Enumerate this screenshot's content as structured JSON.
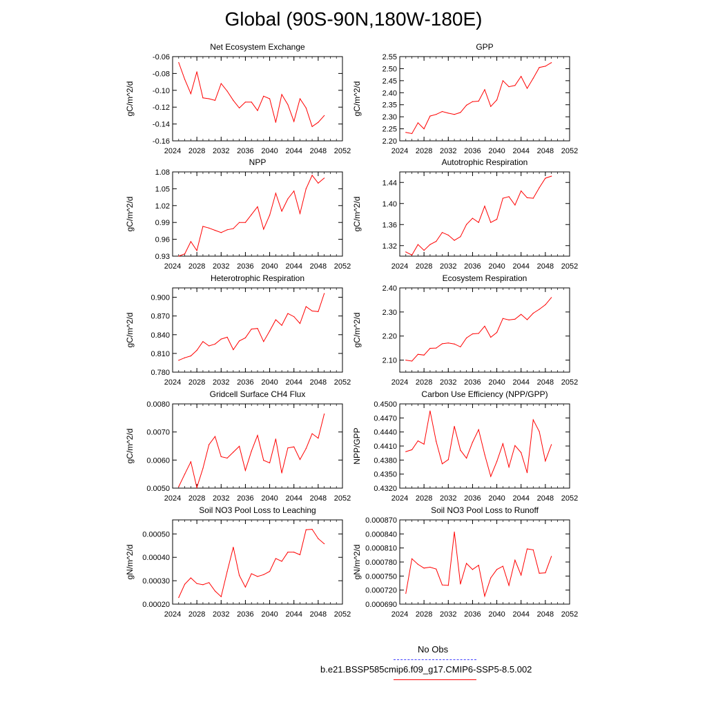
{
  "page": {
    "title": "Global (90S-90N,180W-180E)"
  },
  "legend": {
    "obs_label": "No Obs",
    "obs_color": "#4040ff",
    "run_label": "b.e21.BSSP585cmip6.f09_g17.CMIP6-SSP5-8.5.002",
    "run_color": "#ff0000"
  },
  "chart_data": [
    {
      "type": "line",
      "title": "Net Ecosystem Exchange",
      "ylabel": "gC/m^2/d",
      "xlim": [
        2024,
        2052
      ],
      "ylim": [
        -0.16,
        -0.06
      ],
      "yticks": [
        "-0.06",
        "-0.08",
        "-0.10",
        "-0.12",
        "-0.14",
        "-0.16"
      ],
      "xticks": [
        "2024",
        "2028",
        "2032",
        "2036",
        "2040",
        "2044",
        "2048",
        "2052"
      ],
      "x": [
        2025,
        2026,
        2027,
        2028,
        2029,
        2030,
        2031,
        2032,
        2033,
        2034,
        2035,
        2036,
        2037,
        2038,
        2039,
        2040,
        2041,
        2042,
        2043,
        2044,
        2045,
        2046,
        2047,
        2048,
        2049
      ],
      "series": [
        {
          "values": [
            -0.067,
            -0.087,
            -0.104,
            -0.078,
            -0.109,
            -0.11,
            -0.112,
            -0.092,
            -0.101,
            -0.112,
            -0.121,
            -0.114,
            -0.114,
            -0.124,
            -0.107,
            -0.11,
            -0.138,
            -0.105,
            -0.117,
            -0.137,
            -0.11,
            -0.121,
            -0.143,
            -0.138,
            -0.13
          ],
          "color": "#ff0000"
        }
      ]
    },
    {
      "type": "line",
      "title": "GPP",
      "ylabel": "gC/m^2/d",
      "xlim": [
        2024,
        2052
      ],
      "ylim": [
        2.2,
        2.55
      ],
      "yticks": [
        "2.55",
        "2.50",
        "2.45",
        "2.40",
        "2.35",
        "2.30",
        "2.25",
        "2.20"
      ],
      "xticks": [
        "2024",
        "2028",
        "2032",
        "2036",
        "2040",
        "2044",
        "2048",
        "2052"
      ],
      "x": [
        2025,
        2026,
        2027,
        2028,
        2029,
        2030,
        2031,
        2032,
        2033,
        2034,
        2035,
        2036,
        2037,
        2038,
        2039,
        2040,
        2041,
        2042,
        2043,
        2044,
        2045,
        2046,
        2047,
        2048,
        2049
      ],
      "series": [
        {
          "values": [
            2.235,
            2.23,
            2.275,
            2.25,
            2.303,
            2.31,
            2.322,
            2.315,
            2.31,
            2.318,
            2.348,
            2.363,
            2.365,
            2.413,
            2.343,
            2.37,
            2.45,
            2.425,
            2.43,
            2.468,
            2.418,
            2.46,
            2.505,
            2.51,
            2.525
          ],
          "color": "#ff0000"
        }
      ]
    },
    {
      "type": "line",
      "title": "NPP",
      "ylabel": "gC/m^2/d",
      "xlim": [
        2024,
        2052
      ],
      "ylim": [
        0.93,
        1.08
      ],
      "yticks": [
        "1.08",
        "1.05",
        "1.02",
        "0.99",
        "0.96",
        "0.93"
      ],
      "xticks": [
        "2024",
        "2028",
        "2032",
        "2036",
        "2040",
        "2044",
        "2048",
        "2052"
      ],
      "x": [
        2025,
        2026,
        2027,
        2028,
        2029,
        2030,
        2031,
        2032,
        2033,
        2034,
        2035,
        2036,
        2037,
        2038,
        2039,
        2040,
        2041,
        2042,
        2043,
        2044,
        2045,
        2046,
        2047,
        2048,
        2049
      ],
      "series": [
        {
          "values": [
            0.93,
            0.934,
            0.956,
            0.94,
            0.983,
            0.98,
            0.976,
            0.972,
            0.977,
            0.979,
            0.99,
            0.99,
            1.004,
            1.018,
            0.978,
            1.003,
            1.042,
            1.01,
            1.032,
            1.046,
            1.006,
            1.05,
            1.074,
            1.06,
            1.069
          ],
          "color": "#ff0000"
        }
      ]
    },
    {
      "type": "line",
      "title": "Autotrophic Respiration",
      "ylabel": "gC/m^2/d",
      "xlim": [
        2024,
        2052
      ],
      "ylim": [
        1.3,
        1.46
      ],
      "yticks": [
        "1.44",
        "1.40",
        "1.36",
        "1.32"
      ],
      "xticks": [
        "2024",
        "2028",
        "2032",
        "2036",
        "2040",
        "2044",
        "2048",
        "2052"
      ],
      "x": [
        2025,
        2026,
        2027,
        2028,
        2029,
        2030,
        2031,
        2032,
        2033,
        2034,
        2035,
        2036,
        2037,
        2038,
        2039,
        2040,
        2041,
        2042,
        2043,
        2044,
        2045,
        2046,
        2047,
        2048,
        2049
      ],
      "series": [
        {
          "values": [
            1.308,
            1.302,
            1.322,
            1.311,
            1.322,
            1.328,
            1.345,
            1.34,
            1.33,
            1.337,
            1.36,
            1.372,
            1.364,
            1.395,
            1.364,
            1.37,
            1.41,
            1.413,
            1.397,
            1.424,
            1.411,
            1.41,
            1.43,
            1.448,
            1.452
          ],
          "color": "#ff0000"
        }
      ]
    },
    {
      "type": "line",
      "title": "Heterotrophic Respiration",
      "ylabel": "gC/m^2/d",
      "xlim": [
        2024,
        2052
      ],
      "ylim": [
        0.78,
        0.915
      ],
      "yticks": [
        "0.900",
        "0.870",
        "0.840",
        "0.810",
        "0.780"
      ],
      "xticks": [
        "2024",
        "2028",
        "2032",
        "2036",
        "2040",
        "2044",
        "2048",
        "2052"
      ],
      "x": [
        2025,
        2026,
        2027,
        2028,
        2029,
        2030,
        2031,
        2032,
        2033,
        2034,
        2035,
        2036,
        2037,
        2038,
        2039,
        2040,
        2041,
        2042,
        2043,
        2044,
        2045,
        2046,
        2047,
        2048,
        2049
      ],
      "series": [
        {
          "values": [
            0.799,
            0.803,
            0.806,
            0.815,
            0.829,
            0.822,
            0.825,
            0.833,
            0.836,
            0.816,
            0.83,
            0.835,
            0.849,
            0.85,
            0.829,
            0.846,
            0.864,
            0.855,
            0.874,
            0.869,
            0.858,
            0.885,
            0.878,
            0.877,
            0.906
          ],
          "color": "#ff0000"
        }
      ]
    },
    {
      "type": "line",
      "title": "Ecosystem Respiration",
      "ylabel": "gC/m^2/d",
      "xlim": [
        2024,
        2052
      ],
      "ylim": [
        2.05,
        2.4
      ],
      "yticks": [
        "2.40",
        "2.30",
        "2.20",
        "2.10"
      ],
      "xticks": [
        "2024",
        "2028",
        "2032",
        "2036",
        "2040",
        "2044",
        "2048",
        "2052"
      ],
      "x": [
        2025,
        2026,
        2027,
        2028,
        2029,
        2030,
        2031,
        2032,
        2033,
        2034,
        2035,
        2036,
        2037,
        2038,
        2039,
        2040,
        2041,
        2042,
        2043,
        2044,
        2045,
        2046,
        2047,
        2048,
        2049
      ],
      "series": [
        {
          "values": [
            2.1,
            2.096,
            2.124,
            2.121,
            2.149,
            2.15,
            2.168,
            2.171,
            2.167,
            2.155,
            2.192,
            2.209,
            2.211,
            2.241,
            2.195,
            2.215,
            2.273,
            2.267,
            2.27,
            2.29,
            2.268,
            2.295,
            2.311,
            2.33,
            2.36
          ],
          "color": "#ff0000"
        }
      ]
    },
    {
      "type": "line",
      "title": "Gridcell Surface CH4 Flux",
      "ylabel": "gC/m^2/d",
      "xlim": [
        2024,
        2052
      ],
      "ylim": [
        0.005,
        0.008
      ],
      "yticks": [
        "0.0080",
        "0.0070",
        "0.0060",
        "0.0050"
      ],
      "xticks": [
        "2024",
        "2028",
        "2032",
        "2036",
        "2040",
        "2044",
        "2048",
        "2052"
      ],
      "x": [
        2025,
        2026,
        2027,
        2028,
        2029,
        2030,
        2031,
        2032,
        2033,
        2034,
        2035,
        2036,
        2037,
        2038,
        2039,
        2040,
        2041,
        2042,
        2043,
        2044,
        2045,
        2046,
        2047,
        2048,
        2049
      ],
      "series": [
        {
          "values": [
            0.00505,
            0.0055,
            0.00594,
            0.00502,
            0.0057,
            0.00655,
            0.00684,
            0.00612,
            0.00607,
            0.00628,
            0.00649,
            0.00563,
            0.00632,
            0.00688,
            0.00599,
            0.0059,
            0.00675,
            0.00554,
            0.00643,
            0.00647,
            0.00602,
            0.00641,
            0.00694,
            0.00678,
            0.00764
          ],
          "color": "#ff0000"
        }
      ]
    },
    {
      "type": "line",
      "title": "Carbon Use Efficiency (NPP/GPP)",
      "ylabel": "NPP/GPP",
      "xlim": [
        2024,
        2052
      ],
      "ylim": [
        0.432,
        0.45
      ],
      "yticks": [
        "0.4500",
        "0.4470",
        "0.4440",
        "0.4410",
        "0.4380",
        "0.4350",
        "0.4320"
      ],
      "xticks": [
        "2024",
        "2028",
        "2032",
        "2036",
        "2040",
        "2044",
        "2048",
        "2052"
      ],
      "x": [
        2025,
        2026,
        2027,
        2028,
        2029,
        2030,
        2031,
        2032,
        2033,
        2034,
        2035,
        2036,
        2037,
        2038,
        2039,
        2040,
        2041,
        2042,
        2043,
        2044,
        2045,
        2046,
        2047,
        2048,
        2049
      ],
      "series": [
        {
          "values": [
            0.4398,
            0.4402,
            0.4421,
            0.4414,
            0.4485,
            0.442,
            0.4372,
            0.4381,
            0.4452,
            0.4401,
            0.4384,
            0.4418,
            0.4445,
            0.4392,
            0.4345,
            0.4377,
            0.4415,
            0.4365,
            0.4411,
            0.4396,
            0.4353,
            0.4466,
            0.4441,
            0.4378,
            0.4413
          ],
          "color": "#ff0000"
        }
      ]
    },
    {
      "type": "line",
      "title": "Soil NO3 Pool Loss to Leaching",
      "ylabel": "gN/m^2/d",
      "xlim": [
        2024,
        2052
      ],
      "ylim": [
        0.0002,
        0.00056
      ],
      "yticks": [
        "0.00050",
        "0.00040",
        "0.00030",
        "0.00020"
      ],
      "xticks": [
        "2024",
        "2028",
        "2032",
        "2036",
        "2040",
        "2044",
        "2048",
        "2052"
      ],
      "x": [
        2025,
        2026,
        2027,
        2028,
        2029,
        2030,
        2031,
        2032,
        2033,
        2034,
        2035,
        2036,
        2037,
        2038,
        2039,
        2040,
        2041,
        2042,
        2043,
        2044,
        2045,
        2046,
        2047,
        2048,
        2049
      ],
      "series": [
        {
          "values": [
            0.000228,
            0.000285,
            0.000312,
            0.000288,
            0.000283,
            0.000292,
            0.000256,
            0.000232,
            0.00034,
            0.000443,
            0.000323,
            0.000273,
            0.00033,
            0.000318,
            0.000326,
            0.00034,
            0.000395,
            0.000383,
            0.000422,
            0.000422,
            0.000411,
            0.000518,
            0.00052,
            0.00048,
            0.000458
          ],
          "color": "#ff0000"
        }
      ]
    },
    {
      "type": "line",
      "title": "Soil NO3 Pool Loss to Runoff",
      "ylabel": "gN/m^2/d",
      "xlim": [
        2024,
        2052
      ],
      "ylim": [
        0.00069,
        0.00087
      ],
      "yticks": [
        "0.000870",
        "0.000840",
        "0.000810",
        "0.000780",
        "0.000750",
        "0.000720",
        "0.000690"
      ],
      "xticks": [
        "2024",
        "2028",
        "2032",
        "2036",
        "2040",
        "2044",
        "2048",
        "2052"
      ],
      "x": [
        2025,
        2026,
        2027,
        2028,
        2029,
        2030,
        2031,
        2032,
        2033,
        2034,
        2035,
        2036,
        2037,
        2038,
        2039,
        2040,
        2041,
        2042,
        2043,
        2044,
        2045,
        2046,
        2047,
        2048,
        2049
      ],
      "series": [
        {
          "values": [
            0.000713,
            0.000787,
            0.000775,
            0.000767,
            0.000769,
            0.000765,
            0.000731,
            0.00073,
            0.000844,
            0.000733,
            0.000777,
            0.000764,
            0.000773,
            0.000707,
            0.000746,
            0.000764,
            0.000771,
            0.00073,
            0.000784,
            0.000752,
            0.000808,
            0.000806,
            0.000756,
            0.000757,
            0.000792
          ],
          "color": "#ff0000"
        }
      ]
    }
  ]
}
